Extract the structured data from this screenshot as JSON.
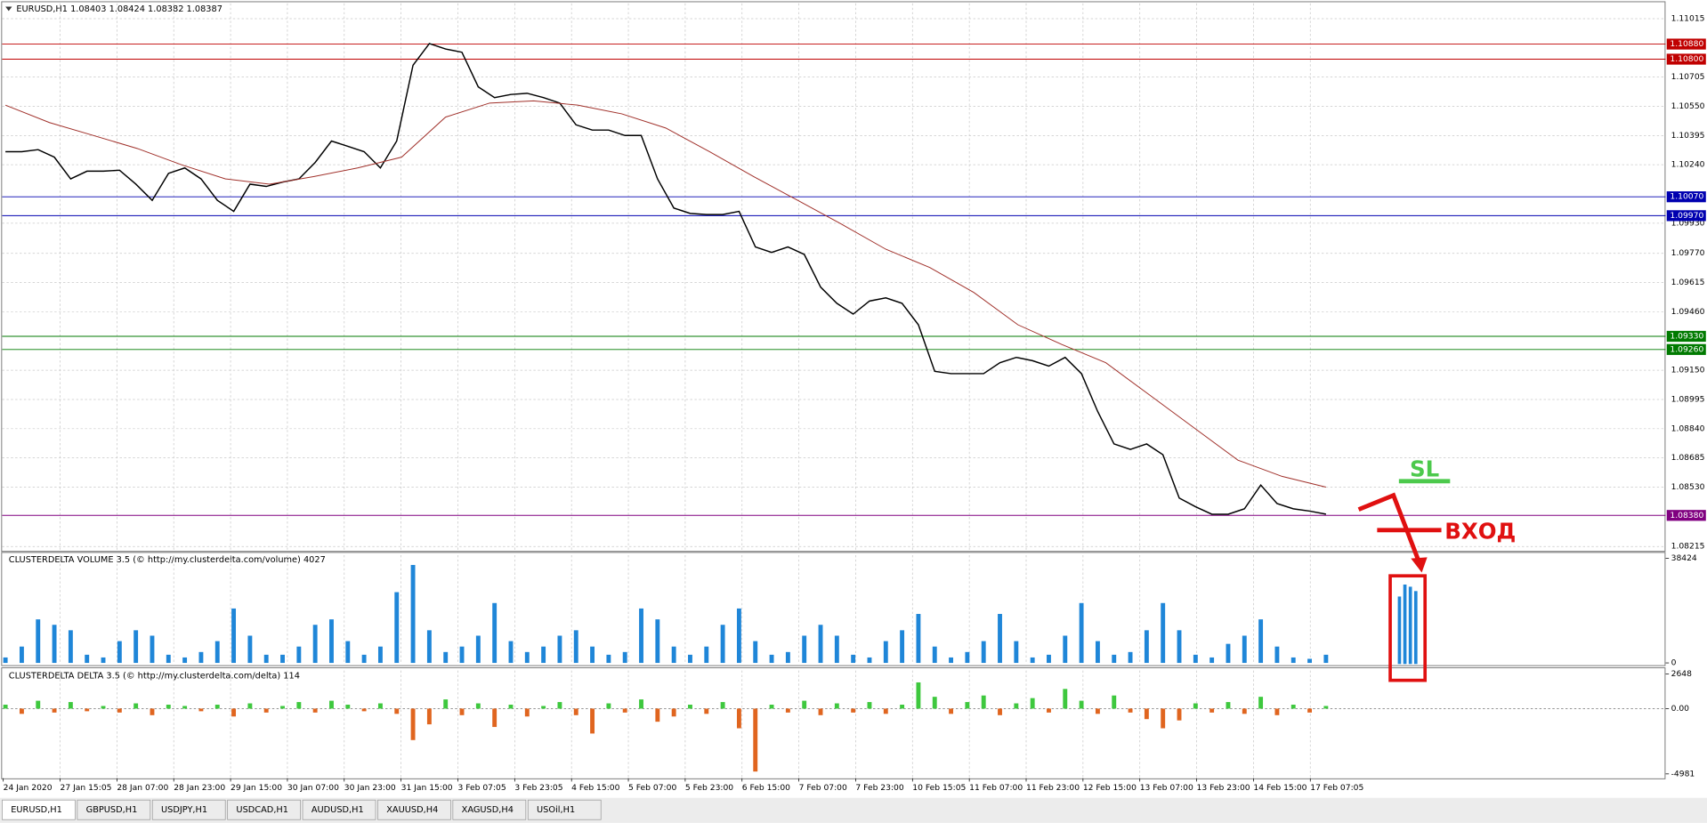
{
  "chart_data": [
    {
      "type": "line",
      "title": "EURUSD,H1  1.08403 1.08424 1.08382 1.08387",
      "ylim": [
        1.08198,
        1.11096
      ],
      "yticks": [
        1.11015,
        1.10705,
        {
          "value": 1.1055,
          "label": "1.10550"
        },
        1.10395,
        {
          "value": 1.1024,
          "label": "1.10240"
        },
        {
          "value": 1.0993,
          "label": "1.09930"
        },
        {
          "value": 1.0977,
          "label": "1.09770"
        },
        1.09615,
        {
          "value": 1.0946,
          "label": "1.09460"
        },
        {
          "value": 1.0915,
          "label": "1.09150"
        },
        1.08995,
        {
          "value": 1.0884,
          "label": "1.08840"
        },
        1.08685,
        {
          "value": 1.0853,
          "label": "1.08530"
        },
        1.08215
      ],
      "grid": true,
      "series": [
        {
          "color": "#000000",
          "values": [
            1.10309,
            1.10309,
            1.1032,
            1.1028,
            1.10165,
            1.10206,
            1.10206,
            1.10211,
            1.10137,
            1.10051,
            1.10194,
            1.10223,
            1.10165,
            1.10051,
            1.09993,
            1.10137,
            1.10125,
            1.10148,
            1.10165,
            1.10252,
            1.10366,
            1.10338,
            1.10309,
            1.10223,
            1.10366,
            1.10768,
            1.10883,
            1.10854,
            1.10837,
            1.10653,
            1.10596,
            1.10613,
            1.10619,
            1.10596,
            1.10567,
            1.10452,
            1.10424,
            1.10424,
            1.10395,
            1.10395,
            1.10165,
            1.1001,
            1.09982,
            1.09976,
            1.09976,
            1.09993,
            1.09804,
            1.09775,
            1.09804,
            1.09764,
            1.09591,
            1.09505,
            1.09448,
            1.09517,
            1.09534,
            1.09505,
            1.09391,
            1.09144,
            1.09132,
            1.09132,
            1.09132,
            1.0919,
            1.09218,
            1.09201,
            1.09172,
            1.09218,
            1.09132,
            1.08931,
            1.08759,
            1.0873,
            1.08759,
            1.08702,
            1.08472,
            1.08426,
            1.08386,
            1.08386,
            1.08415,
            1.08541,
            1.08443,
            1.08415,
            1.08403,
            1.08387
          ]
        },
        {
          "color": "#a0302a",
          "values": [
            1.10556,
            1.10464,
            1.10395,
            1.10326,
            1.1024,
            1.10165,
            1.10137,
            1.10177,
            1.10223,
            1.1028,
            1.10493,
            1.10567,
            1.10579,
            1.10556,
            1.1051,
            1.10435,
            1.10309,
            1.10177,
            1.10051,
            1.09924,
            1.09792,
            1.09695,
            1.09563,
            1.09391,
            1.09287,
            1.0919,
            1.09017,
            1.08845,
            1.08673,
            1.08587,
            1.0853
          ]
        }
      ],
      "levels": [
        {
          "value": 1.1088,
          "label": "1.10880",
          "color": "#c00000"
        },
        {
          "value": 1.108,
          "label": "1.10800",
          "color": "#c00000"
        },
        {
          "value": 1.1007,
          "label": "1.10070",
          "color": "#0000b0"
        },
        {
          "value": 1.0997,
          "label": "1.09970",
          "color": "#0000b0"
        },
        {
          "value": 1.0933,
          "label": "1.09330",
          "color": "#007a00"
        },
        {
          "value": 1.0926,
          "label": "1.09260",
          "color": "#007a00"
        },
        {
          "value": 1.0838,
          "label": "1.08380",
          "color": "#800080"
        }
      ],
      "annotations": [
        "SL",
        "ВХОД"
      ]
    },
    {
      "type": "bar",
      "title": "CLUSTERDELTA VOLUME 3.5 (© http://my.clusterdelta.com/volume) 4027",
      "ylim": [
        0,
        39600
      ],
      "yticks": [
        38424,
        0
      ],
      "color": "#1f86d8",
      "values": [
        2000,
        6000,
        16000,
        14000,
        12000,
        3000,
        2000,
        8000,
        12000,
        10000,
        3000,
        2000,
        4000,
        8000,
        20000,
        10000,
        3000,
        3000,
        6000,
        14000,
        16000,
        8000,
        3000,
        6000,
        26000,
        36000,
        12000,
        4000,
        6000,
        10000,
        22000,
        8000,
        4000,
        6000,
        10000,
        12000,
        6000,
        3000,
        4000,
        20000,
        16000,
        6000,
        3000,
        6000,
        14000,
        20000,
        8000,
        3000,
        4000,
        10000,
        14000,
        10000,
        3000,
        2000,
        8000,
        12000,
        18000,
        6000,
        2000,
        4000,
        8000,
        18000,
        8000,
        2000,
        3000,
        10000,
        22000,
        8000,
        3000,
        4000,
        12000,
        22000,
        12000,
        3000,
        2000,
        7000,
        10000,
        16000,
        6000,
        2000,
        1500,
        3000
      ]
    },
    {
      "type": "bar",
      "title": "CLUSTERDELTA DELTA 3.5 (© http://my.clusterdelta.com/delta) 114",
      "ylim": [
        -5230,
        2905
      ],
      "yticks": [
        2648,
        {
          "value": 0,
          "label": "0.00"
        },
        -4981
      ],
      "color": "#3ec83e",
      "negative_color": "#e0651f",
      "values": [
        300,
        -400,
        600,
        -300,
        500,
        -200,
        200,
        -300,
        400,
        -500,
        300,
        200,
        -200,
        300,
        -600,
        400,
        -300,
        200,
        500,
        -300,
        600,
        300,
        -200,
        400,
        -400,
        -2400,
        -1200,
        700,
        -500,
        400,
        -1400,
        300,
        -600,
        200,
        500,
        -500,
        -1900,
        400,
        -300,
        700,
        -1000,
        -600,
        300,
        -400,
        500,
        -1500,
        -4800,
        300,
        -300,
        600,
        -500,
        400,
        -300,
        500,
        -400,
        300,
        2000,
        900,
        -400,
        500,
        1000,
        -500,
        400,
        800,
        -300,
        1500,
        600,
        -400,
        1000,
        -300,
        -800,
        -1500,
        -900,
        400,
        -300,
        500,
        -400,
        900,
        -500,
        300,
        -300,
        200
      ]
    }
  ],
  "time_axis": [
    "24 Jan 2020",
    "27 Jan 15:05",
    "28 Jan 07:00",
    "28 Jan 23:00",
    "29 Jan 15:00",
    "30 Jan 07:00",
    "30 Jan 23:00",
    "31 Jan 15:00",
    "3 Feb 07:05",
    "3 Feb 23:05",
    "4 Feb 15:00",
    "5 Feb 07:00",
    "5 Feb 23:00",
    "6 Feb 15:00",
    "7 Feb 07:00",
    "7 Feb 23:00",
    "10 Feb 15:05",
    "11 Feb 07:00",
    "11 Feb 23:00",
    "12 Feb 15:00",
    "13 Feb 07:00",
    "13 Feb 23:00",
    "14 Feb 15:00",
    "17 Feb 07:05"
  ],
  "tabs": [
    "EURUSD,H1",
    "GBPUSD,H1",
    "USDJPY,H1",
    "USDCAD,H1",
    "AUDUSD,H1",
    "XAUUSD,H4",
    "XAGUSD,H4",
    "USOil,H1"
  ]
}
